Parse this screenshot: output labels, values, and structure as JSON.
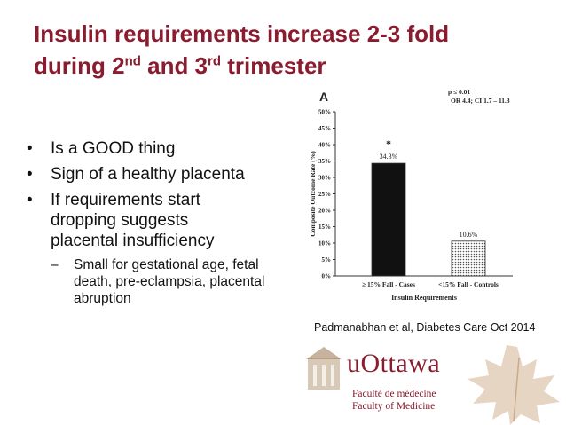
{
  "slide": {
    "title_line1": "Insulin requirements increase 2-3  fold",
    "title_line2_a": "during 2",
    "title_sup1": "nd",
    "title_line2_b": " and 3",
    "title_sup2": "rd",
    "title_line2_c": " trimester",
    "bullets": [
      "Is a GOOD thing",
      "Sign of a healthy placenta",
      "If requirements start dropping suggests placental insufficiency"
    ],
    "subbullet": "Small for gestational age, fetal death, pre-eclampsia, placental abruption",
    "citation": "Padmanabhan et al, Diabetes Care Oct 2014"
  },
  "chart_data": {
    "type": "bar",
    "panel_label": "A",
    "categories": [
      "≥ 15% Fall - Cases",
      "<15% Fall - Controls"
    ],
    "values": [
      34.3,
      10.6
    ],
    "value_labels": [
      "34.3%",
      "10.6%"
    ],
    "xlabel": "Insulin Requirements",
    "ylabel": "Composite Outcome Rate (%)",
    "ylim": [
      0,
      50
    ],
    "yticks": [
      "0%",
      "5%",
      "10%",
      "15%",
      "20%",
      "25%",
      "30%",
      "35%",
      "40%",
      "45%",
      "50%"
    ],
    "significance_marker": "*",
    "stats_line1": "p ≤ 0.01",
    "stats_line2": "OR 4.4;  CI 1.7 – 11.3",
    "colors": {
      "bar1": "#111111",
      "bar2_hatch": "#555555"
    }
  },
  "logo": {
    "name": "uOttawa",
    "line1": "Faculté de médecine",
    "line2": "Faculty of Medicine",
    "brand_color": "#8b1b2e"
  }
}
